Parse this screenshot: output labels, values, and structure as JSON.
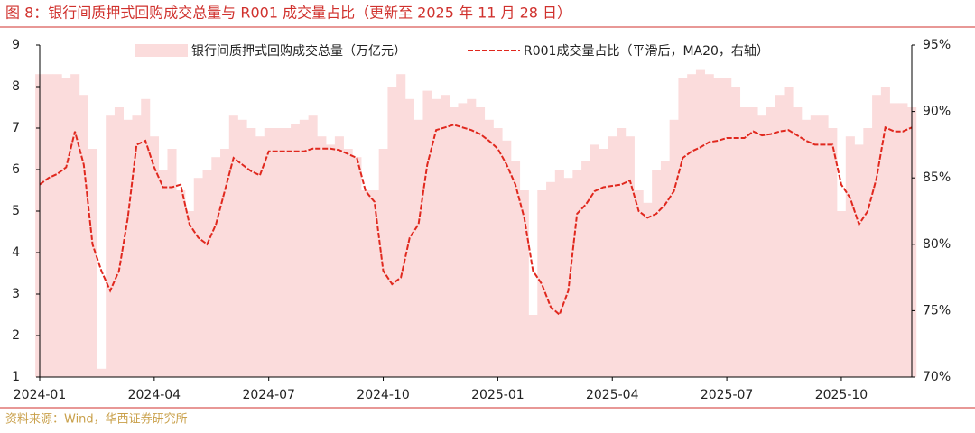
{
  "chart_data": {
    "type": "bar_line",
    "title": "图 8：银行间质押式回购成交总量与 R001 成交量占比（更新至 2025 年 11 月 28 日）",
    "source": "资料来源：Wind，华西证券研究所",
    "categories": [
      "2024-01",
      null,
      null,
      null,
      null,
      null,
      null,
      null,
      null,
      null,
      null,
      null,
      null,
      "2024-04",
      null,
      null,
      null,
      null,
      null,
      null,
      null,
      null,
      null,
      null,
      null,
      null,
      "2024-07",
      null,
      null,
      null,
      null,
      null,
      null,
      null,
      null,
      null,
      null,
      null,
      null,
      "2024-10",
      null,
      null,
      null,
      null,
      null,
      null,
      null,
      null,
      null,
      null,
      null,
      null,
      "2025-01",
      null,
      null,
      null,
      null,
      null,
      null,
      null,
      null,
      null,
      null,
      null,
      null,
      "2025-04",
      null,
      null,
      null,
      null,
      null,
      null,
      null,
      null,
      null,
      null,
      null,
      null,
      "2025-07",
      null,
      null,
      null,
      null,
      null,
      null,
      null,
      null,
      null,
      null,
      null,
      null,
      "2025-10",
      null,
      null,
      null,
      null,
      null,
      null,
      null,
      null
    ],
    "series": [
      {
        "name": "银行间质押式回购成交总量（万亿元）",
        "color": "#fbdcdc",
        "kind": "bar",
        "values": [
          8.3,
          8.3,
          8.3,
          8.2,
          8.3,
          7.8,
          6.5,
          1.2,
          7.3,
          7.5,
          7.2,
          7.3,
          7.7,
          6.8,
          6,
          6.5,
          5.5,
          5,
          5.8,
          6,
          6.3,
          6.5,
          7.3,
          7.2,
          7,
          6.8,
          7,
          7,
          7,
          7.1,
          7.2,
          7.3,
          6.8,
          6.6,
          6.8,
          6.5,
          6.3,
          5.5,
          5.5,
          6.5,
          8,
          8.3,
          7.7,
          7.2,
          7.9,
          7.7,
          7.8,
          7.5,
          7.6,
          7.7,
          7.5,
          7.2,
          7,
          6.7,
          6.2,
          5.5,
          2.5,
          5.5,
          5.7,
          6,
          5.8,
          6,
          6.2,
          6.6,
          6.5,
          6.8,
          7,
          6.8,
          5.5,
          5.2,
          6,
          6.2,
          7.2,
          8.2,
          8.3,
          8.4,
          8.3,
          8.2,
          8.2,
          8,
          7.5,
          7.5,
          7.3,
          7.5,
          7.8,
          8,
          7.5,
          7.2,
          7.3,
          7.3,
          7,
          5,
          6.8,
          6.6,
          7,
          7.8,
          8,
          7.6,
          7.6,
          7.5
        ]
      },
      {
        "name": "R001成交量占比（平滑后，MA20，右轴）",
        "color": "#e0281e",
        "kind": "line",
        "axis": "y2",
        "values": [
          84.5,
          85,
          85.3,
          85.8,
          88.5,
          86,
          80,
          78,
          76.5,
          78,
          82,
          87.5,
          87.8,
          85.8,
          84.3,
          84.3,
          84.5,
          81.5,
          80.5,
          80,
          81.5,
          84,
          86.5,
          86,
          85.5,
          85.2,
          87,
          87,
          87,
          87,
          87,
          87.2,
          87.2,
          87.2,
          87.1,
          86.8,
          86.5,
          84,
          83.2,
          78,
          77,
          77.5,
          80.5,
          81.5,
          86,
          88.6,
          88.8,
          89,
          88.8,
          88.6,
          88.3,
          87.8,
          87.2,
          86,
          84.5,
          82,
          78,
          77,
          75.3,
          74.7,
          76.5,
          82.3,
          83,
          84,
          84.3,
          84.4,
          84.5,
          84.8,
          82.5,
          82,
          82.3,
          83,
          84,
          86.5,
          87,
          87.3,
          87.7,
          87.8,
          88,
          88,
          88,
          88.5,
          88.2,
          88.3,
          88.5,
          88.6,
          88.2,
          87.8,
          87.5,
          87.5,
          87.5,
          84.5,
          83.5,
          81.5,
          82.5,
          85,
          88.8,
          88.5,
          88.5,
          88.8
        ]
      }
    ],
    "ylim": [
      1,
      9
    ],
    "yticks": [
      1,
      2,
      3,
      4,
      5,
      6,
      7,
      8,
      9
    ],
    "y2lim": [
      70,
      95
    ],
    "y2ticks": [
      {
        "value": 70,
        "label": "70%"
      },
      {
        "value": 75,
        "label": "75%"
      },
      {
        "value": 80,
        "label": "80%"
      },
      {
        "value": 85,
        "label": "85%"
      },
      {
        "value": 90,
        "label": "90%"
      },
      {
        "value": 95,
        "label": "95%"
      }
    ],
    "legend": "top"
  }
}
